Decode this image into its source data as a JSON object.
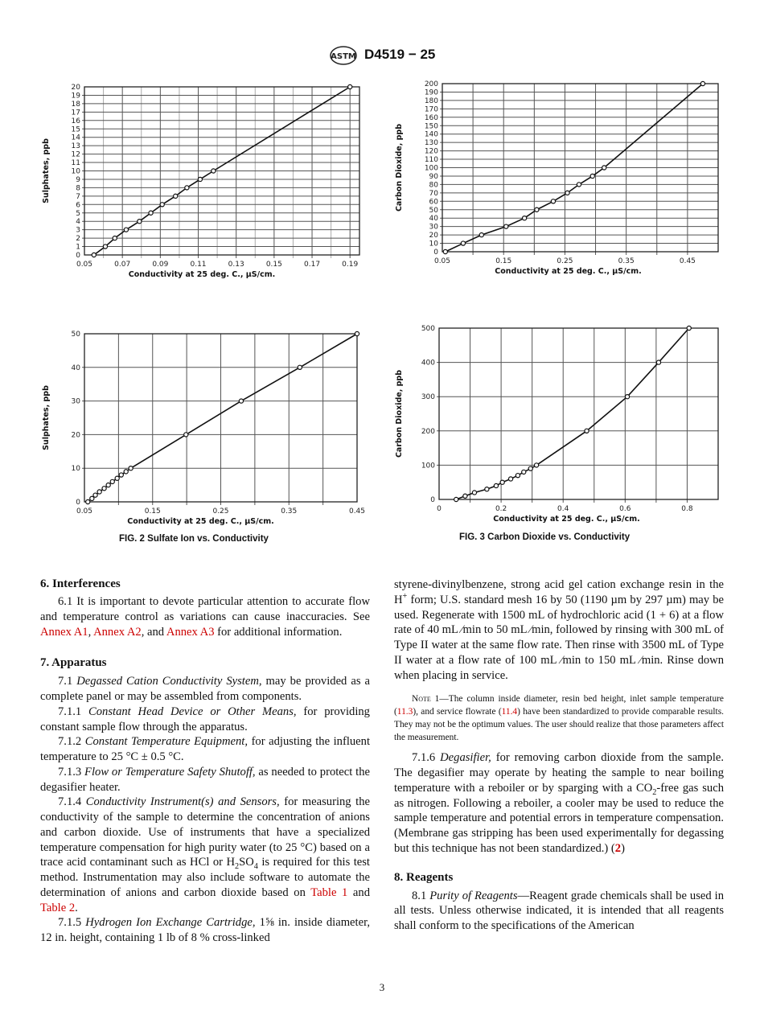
{
  "header": {
    "logo_text": "ASTM",
    "designation": "D4519 − 25"
  },
  "figures": [
    {
      "caption": "FIG. 2  Sulfate Ion vs. Conductivity"
    },
    {
      "caption": "FIG. 3  Carbon Dioxide vs. Conductivity"
    }
  ],
  "chart_data": [
    {
      "type": "line",
      "title": "",
      "xlabel": "Conductivity at 25 deg. C., µS/cm.",
      "ylabel": "Sulphates, ppb",
      "xlim": [
        0.05,
        0.195
      ],
      "ylim": [
        0,
        20
      ],
      "grid": true,
      "xticks": [
        "0.05",
        "0.07",
        "0.09",
        "0.11",
        "0.13",
        "0.15",
        "0.17",
        "0.19"
      ],
      "yticks": [
        "0",
        "1",
        "2",
        "3",
        "4",
        "5",
        "6",
        "7",
        "8",
        "9",
        "10",
        "11",
        "12",
        "13",
        "14",
        "15",
        "16",
        "17",
        "18",
        "19",
        "20"
      ],
      "x": [
        0.055,
        0.061,
        0.066,
        0.072,
        0.079,
        0.085,
        0.091,
        0.098,
        0.104,
        0.111,
        0.118,
        0.19
      ],
      "y": [
        0,
        1,
        2,
        3,
        4,
        5,
        6,
        7,
        8,
        9,
        10,
        20
      ]
    },
    {
      "type": "line",
      "title": "",
      "xlabel": "Conductivity at 25 deg. C., µS/cm.",
      "ylabel": "Carbon Dioxide, ppb",
      "xlim": [
        0.05,
        0.5
      ],
      "ylim": [
        0,
        200
      ],
      "grid": true,
      "xticks": [
        "0.05",
        "0.15",
        "0.25",
        "0.35",
        "0.45"
      ],
      "yticks": [
        "0",
        "10",
        "20",
        "30",
        "40",
        "50",
        "60",
        "70",
        "80",
        "90",
        "100",
        "110",
        "120",
        "130",
        "140",
        "150",
        "160",
        "170",
        "180",
        "190",
        "200"
      ],
      "x": [
        0.055,
        0.084,
        0.114,
        0.154,
        0.184,
        0.204,
        0.231,
        0.254,
        0.273,
        0.295,
        0.314,
        0.475
      ],
      "y": [
        0,
        10,
        20,
        30,
        40,
        50,
        60,
        70,
        80,
        90,
        100,
        200
      ]
    },
    {
      "type": "line",
      "title": "",
      "xlabel": "Conductivity at 25 deg. C., µS/cm.",
      "ylabel": "Sulphates, ppb",
      "xlim": [
        0.05,
        0.45
      ],
      "ylim": [
        0,
        50
      ],
      "grid": true,
      "xticks": [
        "0.05",
        "0.15",
        "0.25",
        "0.35",
        "0.45"
      ],
      "yticks": [
        "0",
        "10",
        "20",
        "30",
        "40",
        "50"
      ],
      "x": [
        0.055,
        0.061,
        0.066,
        0.072,
        0.079,
        0.085,
        0.091,
        0.098,
        0.104,
        0.111,
        0.118,
        0.199,
        0.28,
        0.366,
        0.45
      ],
      "y": [
        0,
        1,
        2,
        3,
        4,
        5,
        6,
        7,
        8,
        9,
        10,
        20,
        30,
        40,
        50
      ]
    },
    {
      "type": "line",
      "title": "",
      "xlabel": "Conductivity at 25 deg. C., µS/cm.",
      "ylabel": "Carbon Dioxide, ppb",
      "xlim": [
        0,
        0.9
      ],
      "ylim": [
        0,
        500
      ],
      "grid": true,
      "xticks": [
        "0",
        "0.2",
        "0.4",
        "0.6",
        "0.8"
      ],
      "yticks": [
        "0",
        "100",
        "200",
        "300",
        "400",
        "500"
      ],
      "x": [
        0.055,
        0.084,
        0.114,
        0.154,
        0.184,
        0.204,
        0.231,
        0.254,
        0.273,
        0.295,
        0.314,
        0.476,
        0.607,
        0.708,
        0.806
      ],
      "y": [
        0,
        10,
        20,
        30,
        40,
        50,
        60,
        70,
        80,
        90,
        100,
        200,
        300,
        400,
        500
      ]
    }
  ],
  "body": {
    "s6": "6.  Interferences",
    "p6_1": [
      "6.1 It is important to devote particular attention to accurate flow and temperature control as variations can cause inaccuracies. See ",
      "Annex A1",
      ", ",
      "Annex A2",
      ", and ",
      "Annex A3",
      " for additional information."
    ],
    "s7": "7.  Apparatus",
    "p7_1": [
      "7.1 ",
      "Degassed Cation Conductivity System,",
      " may be provided as a complete panel or may be assembled from components."
    ],
    "p7_1_1": [
      "7.1.1 ",
      "Constant Head Device or Other Means,",
      " for providing constant sample flow through the apparatus."
    ],
    "p7_1_2": [
      "7.1.2 ",
      "Constant Temperature Equipment,",
      " for adjusting the influent temperature to 25 °C ± 0.5 °C."
    ],
    "p7_1_3": [
      "7.1.3 ",
      "Flow or Temperature Safety Shutoff,",
      " as needed to protect the degasifier heater."
    ],
    "p7_1_4": [
      "7.1.4 ",
      "Conductivity Instrument(s) and Sensors,",
      " for measuring the conductivity of the sample to determine the concentration of anions and carbon dioxide. Use of instruments that have a specialized temperature compensation for high purity water (to 25 °C) based on a trace acid contaminant such as HCl or H",
      "2",
      "SO",
      "4",
      " is required for this test method. Instrumentation may also include software to automate the determination of anions and carbon dioxide based on ",
      "Table 1",
      " and ",
      "Table 2",
      "."
    ],
    "p7_1_5": [
      "7.1.5 ",
      "Hydrogen Ion Exchange Cartridge,",
      " 1⅝ in. inside diameter, 12 in. height, containing 1 lb of 8 % cross-linked styrene-divinylbenzene, strong acid gel cation exchange resin in the H",
      "+",
      " form; U.S. standard mesh 16 by 50 (1190 µm by 297 µm) may be used. Regenerate with 1500 mL of hydrochloric acid (1 + 6) at a flow rate of 40 mL ⁄min to 50 mL ⁄min, followed by rinsing with 300 mL of Type II water at the same flow rate. Then rinse with 3500 mL of Type II water at a flow rate of 100 mL ⁄min to 150 mL ⁄min. Rinse down when placing in service."
    ],
    "note1": [
      "Note 1",
      "—The column inside diameter, resin bed height, inlet sample temperature (",
      "11.3",
      "), and service flowrate (",
      "11.4",
      ") have been standardized to provide comparable results. They may not be the optimum values. The user should realize that those parameters affect the measurement."
    ],
    "p7_1_6": [
      "7.1.6 ",
      "Degasifier,",
      " for removing carbon dioxide from the sample. The degasifier may operate by heating the sample to near boiling temperature with a reboiler or by sparging with a CO",
      "2",
      "-free gas such as nitrogen. Following a reboiler, a cooler may be used to reduce the sample temperature and potential errors in temperature compensation. (Membrane gas stripping has been used experimentally for degassing but this technique has not been standardized.) (",
      "2",
      ")"
    ],
    "s8": "8.  Reagents",
    "p8_1": [
      "8.1 ",
      "Purity of Reagents",
      "—Reagent grade chemicals shall be used in all tests. Unless otherwise indicated, it is intended that all reagents shall conform to the specifications of the American"
    ]
  },
  "footer": {
    "page_number": "3"
  },
  "colors": {
    "link": "#cc0000",
    "text": "#111111"
  }
}
